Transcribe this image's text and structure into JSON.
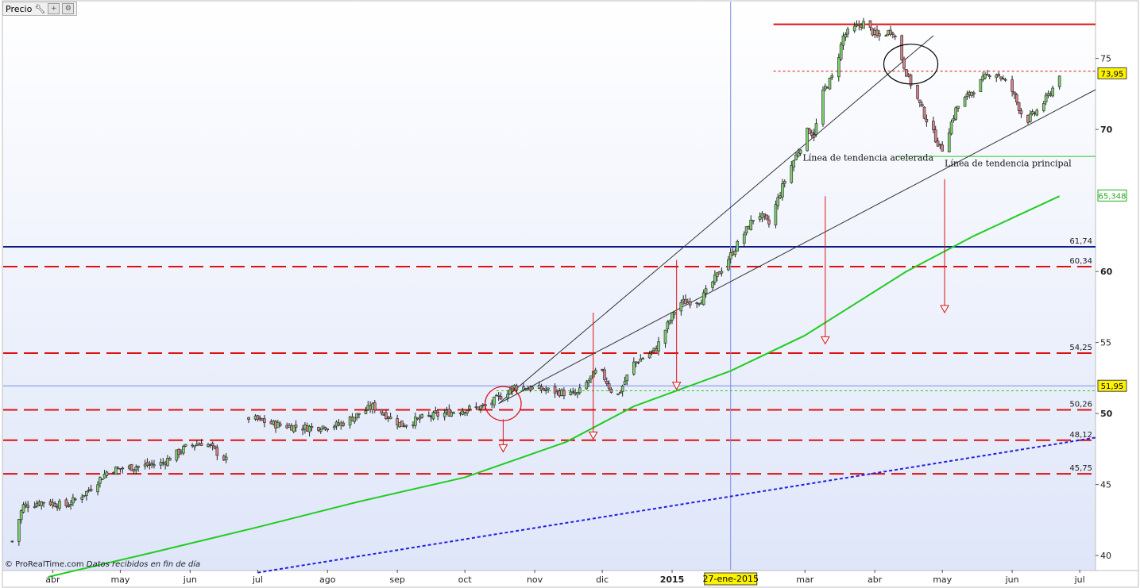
{
  "header": {
    "title": "Precio",
    "wrench_icon": "wrench-icon",
    "buttons": [
      "add-icon",
      "settings-icon"
    ]
  },
  "copyright": {
    "brand": "© ProRealTime.com",
    "note": "Datos recibidos en fin de día"
  },
  "colors": {
    "up": "#7ecf6e",
    "down": "#d88088",
    "candle_outline": "#222222",
    "resistance": "#e01010",
    "dashed_level": "#e01010",
    "blue_level": "#0c1c8c",
    "ma": "#22cc22",
    "blue_trend": "#2020e0",
    "trendline": "#333333",
    "cursor": "#7a8ee8",
    "highlight": "#fff200",
    "ma_tag": "#22aa22"
  },
  "chart_data": {
    "type": "candlestick",
    "title": "",
    "xlabel": "",
    "ylabel": "",
    "ylim": [
      39.0,
      79.0
    ],
    "y_ticks": [
      40,
      45,
      50,
      55,
      60,
      70,
      75
    ],
    "bold_ticks": [
      50,
      60,
      70
    ],
    "x_ticks": [
      {
        "label": "abr",
        "date": "2014-04-01"
      },
      {
        "label": "may",
        "date": "2014-05-01"
      },
      {
        "label": "jun",
        "date": "2014-06-01"
      },
      {
        "label": "jul",
        "date": "2014-07-01"
      },
      {
        "label": "ago",
        "date": "2014-08-01"
      },
      {
        "label": "sep",
        "date": "2014-09-01"
      },
      {
        "label": "oct",
        "date": "2014-10-01"
      },
      {
        "label": "nov",
        "date": "2014-11-01"
      },
      {
        "label": "dic",
        "date": "2014-12-01"
      },
      {
        "label": "2015",
        "date": "2015-01-01",
        "bold": true
      },
      {
        "label": "mar",
        "date": "2015-03-01"
      },
      {
        "label": "abr",
        "date": "2015-04-01"
      },
      {
        "label": "may",
        "date": "2015-05-01"
      },
      {
        "label": "jun",
        "date": "2015-06-01"
      },
      {
        "label": "jul",
        "date": "2015-07-01"
      }
    ],
    "x_range": [
      "2014-03-10",
      "2015-07-08"
    ],
    "cursor": {
      "date": "2015-01-27",
      "label": "27-ene-2015"
    },
    "price_segments": [
      {
        "from": "2014-03-14",
        "to": "2014-06-17",
        "points": [
          [
            0,
            41.0
          ],
          [
            0.05,
            43.5
          ],
          [
            0.15,
            43.8
          ],
          [
            0.25,
            43.5
          ],
          [
            0.35,
            44.5
          ],
          [
            0.45,
            46.0
          ],
          [
            0.6,
            46.3
          ],
          [
            0.7,
            46.5
          ],
          [
            0.82,
            47.7
          ],
          [
            0.9,
            48.0
          ],
          [
            1.0,
            46.7
          ]
        ]
      },
      {
        "from": "2014-06-27",
        "to": "2015-03-05",
        "points": [
          [
            0,
            49.7
          ],
          [
            0.05,
            49.2
          ],
          [
            0.1,
            49.0
          ],
          [
            0.16,
            49.2
          ],
          [
            0.22,
            50.5
          ],
          [
            0.27,
            49.2
          ],
          [
            0.31,
            49.7
          ],
          [
            0.37,
            50.2
          ],
          [
            0.42,
            50.5
          ],
          [
            0.47,
            51.9
          ],
          [
            0.52,
            51.7
          ],
          [
            0.58,
            51.3
          ],
          [
            0.62,
            53.2
          ],
          [
            0.65,
            51.0
          ],
          [
            0.68,
            53.5
          ],
          [
            0.72,
            54.5
          ],
          [
            0.76,
            57.8
          ],
          [
            0.8,
            58.0
          ],
          [
            0.83,
            59.8
          ],
          [
            0.86,
            61.6
          ],
          [
            0.9,
            64.2
          ],
          [
            0.92,
            63.3
          ],
          [
            0.95,
            66.6
          ],
          [
            0.99,
            70.0
          ],
          [
            1.0,
            69.6
          ]
        ]
      },
      {
        "from": "2015-03-05",
        "to": "2015-06-22",
        "points": [
          [
            0,
            69.6
          ],
          [
            0.04,
            72.8
          ],
          [
            0.08,
            73.8
          ],
          [
            0.12,
            76.6
          ],
          [
            0.2,
            77.5
          ],
          [
            0.26,
            76.5
          ],
          [
            0.32,
            77.0
          ],
          [
            0.38,
            73.8
          ],
          [
            0.45,
            71.0
          ],
          [
            0.52,
            68.5
          ],
          [
            0.58,
            71.5
          ],
          [
            0.66,
            73.0
          ],
          [
            0.73,
            74.2
          ],
          [
            0.8,
            73.0
          ],
          [
            0.86,
            70.5
          ],
          [
            0.92,
            71.5
          ],
          [
            0.97,
            72.8
          ],
          [
            1.0,
            73.95
          ]
        ]
      }
    ],
    "levels": [
      {
        "value": 77.4,
        "style": "solid",
        "color": "resistance",
        "from": "2015-02-15",
        "to": "edge"
      },
      {
        "value": 74.1,
        "style": "fine-dashed",
        "color": "resistance",
        "from": "2015-02-15",
        "to": "edge"
      },
      {
        "value": 68.1,
        "style": "solid-thin",
        "color": "ma",
        "from": "2015-04-10",
        "to": "edge"
      },
      {
        "value": 61.74,
        "style": "solid",
        "color": "blue_level",
        "label": "61,74"
      },
      {
        "value": 60.34,
        "style": "dashed",
        "color": "dashed_level",
        "label": "60,34"
      },
      {
        "value": 54.25,
        "style": "dashed",
        "color": "dashed_level",
        "label": "54,25"
      },
      {
        "value": 51.95,
        "style": "thin",
        "color": "cursor"
      },
      {
        "value": 51.6,
        "style": "fine-dashed",
        "color": "ma",
        "from": "2014-10-15",
        "to": "edge"
      },
      {
        "value": 50.26,
        "style": "dashed",
        "color": "dashed_level",
        "label": "50,26"
      },
      {
        "value": 48.12,
        "style": "dashed",
        "color": "dashed_level",
        "label": "48,12"
      },
      {
        "value": 45.75,
        "style": "dashed",
        "color": "dashed_level",
        "label": "45,75"
      }
    ],
    "moving_average": {
      "color": "ma",
      "points": [
        [
          "2014-03-30",
          38.5
        ],
        [
          "2014-05-15",
          40.2
        ],
        [
          "2014-07-01",
          42.0
        ],
        [
          "2014-08-15",
          43.8
        ],
        [
          "2014-10-01",
          45.5
        ],
        [
          "2014-11-15",
          48.0
        ],
        [
          "2014-12-15",
          50.5
        ],
        [
          "2015-01-27",
          53.0
        ],
        [
          "2015-03-01",
          55.5
        ],
        [
          "2015-04-15",
          60.0
        ],
        [
          "2015-05-15",
          62.5
        ],
        [
          "2015-06-22",
          65.3
        ]
      ],
      "tag": "65,348"
    },
    "blue_trend": {
      "points": [
        [
          "2014-07-01",
          38.8
        ],
        [
          "2015-07-08",
          48.3
        ]
      ]
    },
    "trendlines": [
      {
        "name": "Línea de tendencia acelerada",
        "points": [
          [
            "2014-10-16",
            50.7
          ],
          [
            "2015-04-27",
            76.6
          ]
        ],
        "label": "Línea de tendencia acelerada",
        "label_at": [
          "2015-02-28",
          67.8
        ]
      },
      {
        "name": "Línea de tendencia principal",
        "points": [
          [
            "2014-10-16",
            50.7
          ],
          [
            "2015-07-08",
            72.8
          ]
        ],
        "label": "Línea de tendencia principal",
        "label_at": [
          "2015-05-02",
          67.4
        ]
      }
    ],
    "arrows": [
      {
        "date": "2014-10-18",
        "from": 49.6,
        "to": 47.3
      },
      {
        "date": "2014-11-27",
        "from": 57.1,
        "to": 48.2
      },
      {
        "date": "2015-01-03",
        "from": 60.8,
        "to": 51.7
      },
      {
        "date": "2015-03-10",
        "from": 65.3,
        "to": 54.9
      },
      {
        "date": "2015-05-02",
        "from": 66.5,
        "to": 57.1
      }
    ],
    "circles": [
      {
        "date": "2014-10-18",
        "value": 50.7,
        "rx_days": 8,
        "ry": 1.2,
        "color": "resistance"
      },
      {
        "date": "2015-04-17",
        "value": 74.6,
        "rx_days": 12,
        "ry": 1.4,
        "color": "black"
      }
    ],
    "price_tags": [
      {
        "value": 73.95,
        "label": "73,95",
        "bg": "highlight"
      },
      {
        "value": 51.95,
        "label": "51,95",
        "bg": "highlight"
      },
      {
        "value": 65.348,
        "label": "65,348",
        "bg": "white",
        "border": "ma_tag"
      }
    ]
  }
}
